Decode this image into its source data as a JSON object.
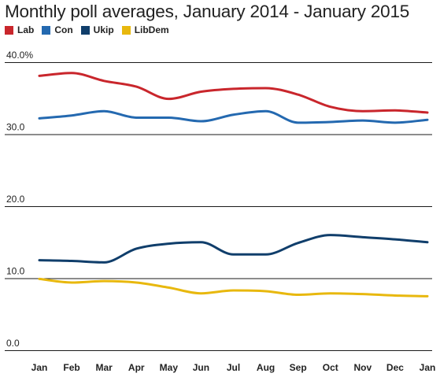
{
  "chart_data": {
    "type": "line",
    "title": "Monthly poll averages, January 2014 - January 2015",
    "xlabel": "",
    "ylabel": "",
    "categories": [
      "Jan",
      "Feb",
      "Mar",
      "Apr",
      "May",
      "Jun",
      "Jul",
      "Aug",
      "Sep",
      "Oct",
      "Nov",
      "Dec",
      "Jan"
    ],
    "ylim": [
      0,
      40
    ],
    "y_ticks": [
      "0.0",
      "10.0",
      "20.0",
      "30.0",
      "40.0%"
    ],
    "grid": true,
    "legend_position": "top-left",
    "series": [
      {
        "name": "Lab",
        "color": "#c9262c",
        "values": [
          38.1,
          38.5,
          37.4,
          36.6,
          34.9,
          35.9,
          36.3,
          36.4,
          35.5,
          33.8,
          33.2,
          33.3,
          33.0
        ]
      },
      {
        "name": "Con",
        "color": "#2469b0",
        "values": [
          32.2,
          32.6,
          33.2,
          32.3,
          32.3,
          31.8,
          32.7,
          33.2,
          31.6,
          31.7,
          31.9,
          31.6,
          32.0
        ]
      },
      {
        "name": "Ukip",
        "color": "#103e6b",
        "values": [
          12.5,
          12.4,
          12.2,
          14.1,
          14.8,
          15.0,
          13.3,
          13.3,
          14.9,
          16.0,
          15.7,
          15.4,
          15.0
        ]
      },
      {
        "name": "LibDem",
        "color": "#e8b80e",
        "values": [
          9.9,
          9.4,
          9.6,
          9.4,
          8.7,
          7.9,
          8.3,
          8.2,
          7.7,
          7.9,
          7.8,
          7.6,
          7.5
        ]
      }
    ]
  }
}
